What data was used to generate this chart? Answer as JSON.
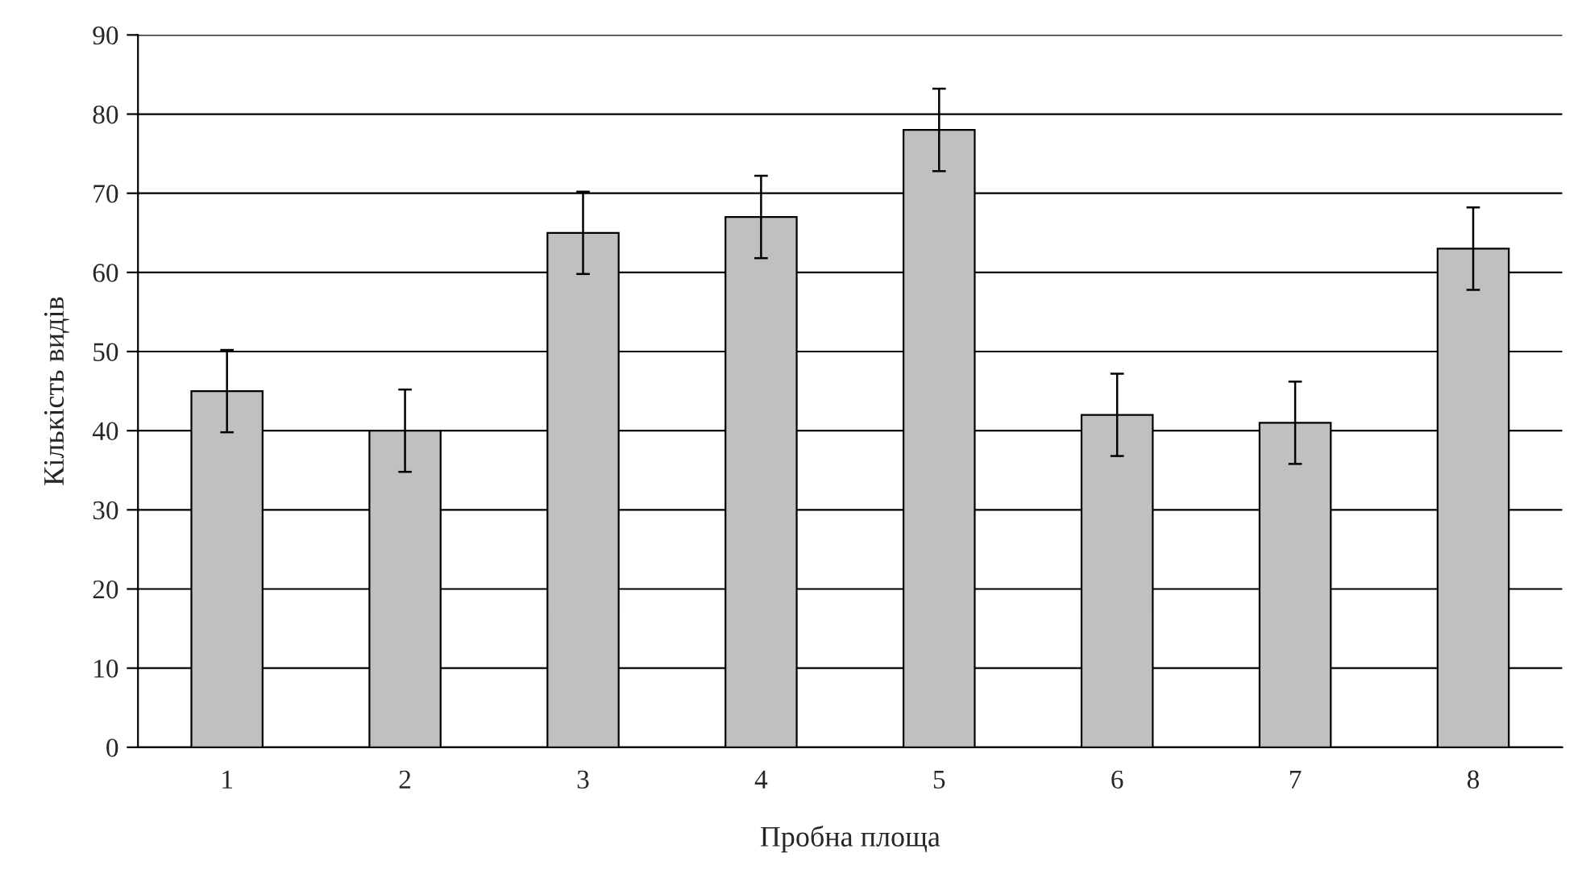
{
  "chart_data": {
    "type": "bar",
    "xlabel": "Пробна площа",
    "ylabel": "Кількість видів",
    "categories": [
      "1",
      "2",
      "3",
      "4",
      "5",
      "6",
      "7",
      "8"
    ],
    "values": [
      45,
      40,
      65,
      67,
      78,
      42,
      41,
      63
    ],
    "errors": [
      5.2,
      5.2,
      5.2,
      5.2,
      5.2,
      5.2,
      5.2,
      5.2
    ],
    "color": "#c0c0c0",
    "ylim": [
      0,
      90
    ],
    "yticks": [
      0,
      10,
      20,
      30,
      40,
      50,
      60,
      70,
      80,
      90
    ],
    "grid": "y",
    "legend": false
  }
}
